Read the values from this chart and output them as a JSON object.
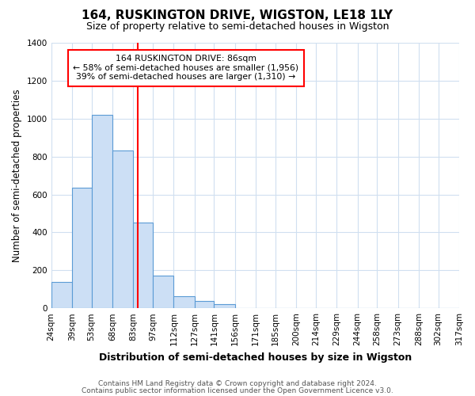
{
  "title": "164, RUSKINGTON DRIVE, WIGSTON, LE18 1LY",
  "subtitle": "Size of property relative to semi-detached houses in Wigston",
  "xlabel": "Distribution of semi-detached houses by size in Wigston",
  "ylabel": "Number of semi-detached properties",
  "footnote1": "Contains HM Land Registry data © Crown copyright and database right 2024.",
  "footnote2": "Contains public sector information licensed under the Open Government Licence v3.0.",
  "annotation_line1": "164 RUSKINGTON DRIVE: 86sqm",
  "annotation_line2": "← 58% of semi-detached houses are smaller (1,956)",
  "annotation_line3": "39% of semi-detached houses are larger (1,310) →",
  "property_size": 86,
  "bin_edges": [
    24,
    39,
    53,
    68,
    83,
    97,
    112,
    127,
    141,
    156,
    171,
    185,
    200,
    214,
    229,
    244,
    258,
    273,
    288,
    302,
    317
  ],
  "bin_labels": [
    "24sqm",
    "39sqm",
    "53sqm",
    "68sqm",
    "83sqm",
    "97sqm",
    "112sqm",
    "127sqm",
    "141sqm",
    "156sqm",
    "171sqm",
    "185sqm",
    "200sqm",
    "214sqm",
    "229sqm",
    "244sqm",
    "258sqm",
    "273sqm",
    "288sqm",
    "302sqm",
    "317sqm"
  ],
  "bar_heights": [
    140,
    635,
    1020,
    830,
    450,
    170,
    65,
    40,
    20,
    0,
    0,
    0,
    0,
    0,
    0,
    0,
    0,
    0,
    0,
    0
  ],
  "bar_color": "#ccdff5",
  "bar_edge_color": "#5b9bd5",
  "red_line_x": 86,
  "ylim": [
    0,
    1400
  ],
  "yticks": [
    0,
    200,
    400,
    600,
    800,
    1000,
    1200,
    1400
  ],
  "background_color": "#ffffff",
  "plot_bg_color": "#ffffff",
  "grid_color": "#d0dff0",
  "annotation_box_color": "white",
  "annotation_box_edge": "red",
  "red_line_color": "red",
  "title_fontsize": 11,
  "subtitle_fontsize": 9,
  "ylabel_fontsize": 8.5,
  "xlabel_fontsize": 9,
  "tick_fontsize": 7.5,
  "footnote_fontsize": 6.5
}
